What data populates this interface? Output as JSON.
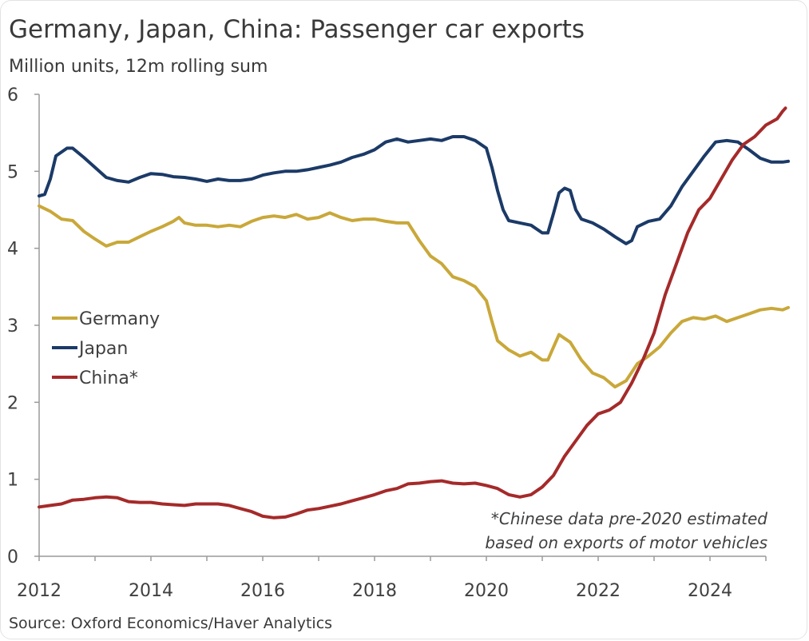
{
  "title": "Germany, Japan, China: Passenger car exports",
  "subtitle": "Million units, 12m rolling sum",
  "source": "Source: Oxford Economics/Haver Analytics",
  "chart_data": {
    "type": "line",
    "title": "Germany, Japan, China: Passenger car exports",
    "subtitle": "Million units, 12m rolling sum",
    "xlabel": "",
    "ylabel": "",
    "xlim": [
      2012,
      2025.6
    ],
    "ylim": [
      0,
      6
    ],
    "x_ticks": [
      "2012",
      "2014",
      "2016",
      "2018",
      "2020",
      "2022",
      "2024"
    ],
    "y_ticks": [
      "0",
      "1",
      "2",
      "3",
      "4",
      "5",
      "6"
    ],
    "grid": false,
    "legend_position": "left-middle",
    "annotations": [
      "*Chinese data pre-2020 estimated",
      "based on exports of motor vehicles"
    ],
    "series": [
      {
        "name": "Germany",
        "color": "#c9a83a",
        "points": [
          [
            2012.0,
            4.55
          ],
          [
            2012.2,
            4.48
          ],
          [
            2012.4,
            4.38
          ],
          [
            2012.6,
            4.36
          ],
          [
            2012.8,
            4.22
          ],
          [
            2013.0,
            4.12
          ],
          [
            2013.2,
            4.03
          ],
          [
            2013.4,
            4.08
          ],
          [
            2013.6,
            4.08
          ],
          [
            2013.8,
            4.15
          ],
          [
            2014.0,
            4.22
          ],
          [
            2014.2,
            4.28
          ],
          [
            2014.4,
            4.35
          ],
          [
            2014.5,
            4.4
          ],
          [
            2014.6,
            4.33
          ],
          [
            2014.8,
            4.3
          ],
          [
            2015.0,
            4.3
          ],
          [
            2015.2,
            4.28
          ],
          [
            2015.4,
            4.3
          ],
          [
            2015.6,
            4.28
          ],
          [
            2015.8,
            4.35
          ],
          [
            2016.0,
            4.4
          ],
          [
            2016.2,
            4.42
          ],
          [
            2016.4,
            4.4
          ],
          [
            2016.6,
            4.44
          ],
          [
            2016.8,
            4.38
          ],
          [
            2017.0,
            4.4
          ],
          [
            2017.2,
            4.46
          ],
          [
            2017.4,
            4.4
          ],
          [
            2017.6,
            4.36
          ],
          [
            2017.8,
            4.38
          ],
          [
            2018.0,
            4.38
          ],
          [
            2018.2,
            4.35
          ],
          [
            2018.4,
            4.33
          ],
          [
            2018.6,
            4.33
          ],
          [
            2018.8,
            4.1
          ],
          [
            2019.0,
            3.9
          ],
          [
            2019.2,
            3.8
          ],
          [
            2019.4,
            3.63
          ],
          [
            2019.6,
            3.58
          ],
          [
            2019.8,
            3.5
          ],
          [
            2020.0,
            3.32
          ],
          [
            2020.1,
            3.05
          ],
          [
            2020.2,
            2.8
          ],
          [
            2020.4,
            2.68
          ],
          [
            2020.6,
            2.6
          ],
          [
            2020.8,
            2.65
          ],
          [
            2021.0,
            2.55
          ],
          [
            2021.1,
            2.55
          ],
          [
            2021.3,
            2.88
          ],
          [
            2021.5,
            2.78
          ],
          [
            2021.7,
            2.55
          ],
          [
            2021.9,
            2.38
          ],
          [
            2022.1,
            2.32
          ],
          [
            2022.3,
            2.2
          ],
          [
            2022.5,
            2.28
          ],
          [
            2022.7,
            2.5
          ],
          [
            2022.9,
            2.6
          ],
          [
            2023.1,
            2.72
          ],
          [
            2023.3,
            2.9
          ],
          [
            2023.5,
            3.05
          ],
          [
            2023.7,
            3.1
          ],
          [
            2023.9,
            3.08
          ],
          [
            2024.1,
            3.12
          ],
          [
            2024.3,
            3.05
          ],
          [
            2024.5,
            3.1
          ],
          [
            2024.7,
            3.15
          ],
          [
            2024.9,
            3.2
          ],
          [
            2025.1,
            3.22
          ],
          [
            2025.3,
            3.2
          ],
          [
            2025.4,
            3.23
          ]
        ]
      },
      {
        "name": "Japan",
        "color": "#1b3a67",
        "points": [
          [
            2012.0,
            4.68
          ],
          [
            2012.1,
            4.7
          ],
          [
            2012.2,
            4.9
          ],
          [
            2012.3,
            5.2
          ],
          [
            2012.5,
            5.3
          ],
          [
            2012.6,
            5.3
          ],
          [
            2012.8,
            5.18
          ],
          [
            2013.0,
            5.05
          ],
          [
            2013.2,
            4.92
          ],
          [
            2013.4,
            4.88
          ],
          [
            2013.6,
            4.86
          ],
          [
            2013.8,
            4.92
          ],
          [
            2014.0,
            4.97
          ],
          [
            2014.2,
            4.96
          ],
          [
            2014.4,
            4.93
          ],
          [
            2014.6,
            4.92
          ],
          [
            2014.8,
            4.9
          ],
          [
            2015.0,
            4.87
          ],
          [
            2015.2,
            4.9
          ],
          [
            2015.4,
            4.88
          ],
          [
            2015.6,
            4.88
          ],
          [
            2015.8,
            4.9
          ],
          [
            2016.0,
            4.95
          ],
          [
            2016.2,
            4.98
          ],
          [
            2016.4,
            5.0
          ],
          [
            2016.6,
            5.0
          ],
          [
            2016.8,
            5.02
          ],
          [
            2017.0,
            5.05
          ],
          [
            2017.2,
            5.08
          ],
          [
            2017.4,
            5.12
          ],
          [
            2017.6,
            5.18
          ],
          [
            2017.8,
            5.22
          ],
          [
            2018.0,
            5.28
          ],
          [
            2018.2,
            5.38
          ],
          [
            2018.4,
            5.42
          ],
          [
            2018.6,
            5.38
          ],
          [
            2018.8,
            5.4
          ],
          [
            2019.0,
            5.42
          ],
          [
            2019.2,
            5.4
          ],
          [
            2019.4,
            5.45
          ],
          [
            2019.6,
            5.45
          ],
          [
            2019.8,
            5.4
          ],
          [
            2020.0,
            5.3
          ],
          [
            2020.1,
            5.05
          ],
          [
            2020.2,
            4.75
          ],
          [
            2020.3,
            4.5
          ],
          [
            2020.4,
            4.36
          ],
          [
            2020.6,
            4.33
          ],
          [
            2020.8,
            4.3
          ],
          [
            2021.0,
            4.2
          ],
          [
            2021.1,
            4.2
          ],
          [
            2021.2,
            4.45
          ],
          [
            2021.3,
            4.72
          ],
          [
            2021.4,
            4.78
          ],
          [
            2021.5,
            4.75
          ],
          [
            2021.6,
            4.5
          ],
          [
            2021.7,
            4.38
          ],
          [
            2021.9,
            4.33
          ],
          [
            2022.1,
            4.25
          ],
          [
            2022.3,
            4.15
          ],
          [
            2022.5,
            4.06
          ],
          [
            2022.6,
            4.1
          ],
          [
            2022.7,
            4.28
          ],
          [
            2022.9,
            4.35
          ],
          [
            2023.1,
            4.38
          ],
          [
            2023.3,
            4.55
          ],
          [
            2023.5,
            4.8
          ],
          [
            2023.7,
            5.0
          ],
          [
            2023.9,
            5.2
          ],
          [
            2024.1,
            5.38
          ],
          [
            2024.3,
            5.4
          ],
          [
            2024.5,
            5.38
          ],
          [
            2024.7,
            5.28
          ],
          [
            2024.9,
            5.17
          ],
          [
            2025.1,
            5.12
          ],
          [
            2025.3,
            5.12
          ],
          [
            2025.4,
            5.13
          ]
        ]
      },
      {
        "name": "China*",
        "color": "#a52a2a",
        "points": [
          [
            2012.0,
            0.64
          ],
          [
            2012.2,
            0.66
          ],
          [
            2012.4,
            0.68
          ],
          [
            2012.6,
            0.73
          ],
          [
            2012.8,
            0.74
          ],
          [
            2013.0,
            0.76
          ],
          [
            2013.2,
            0.77
          ],
          [
            2013.4,
            0.76
          ],
          [
            2013.6,
            0.71
          ],
          [
            2013.8,
            0.7
          ],
          [
            2014.0,
            0.7
          ],
          [
            2014.2,
            0.68
          ],
          [
            2014.4,
            0.67
          ],
          [
            2014.6,
            0.66
          ],
          [
            2014.8,
            0.68
          ],
          [
            2015.0,
            0.68
          ],
          [
            2015.2,
            0.68
          ],
          [
            2015.4,
            0.66
          ],
          [
            2015.6,
            0.62
          ],
          [
            2015.8,
            0.58
          ],
          [
            2016.0,
            0.52
          ],
          [
            2016.2,
            0.5
          ],
          [
            2016.4,
            0.51
          ],
          [
            2016.6,
            0.55
          ],
          [
            2016.8,
            0.6
          ],
          [
            2017.0,
            0.62
          ],
          [
            2017.2,
            0.65
          ],
          [
            2017.4,
            0.68
          ],
          [
            2017.6,
            0.72
          ],
          [
            2017.8,
            0.76
          ],
          [
            2018.0,
            0.8
          ],
          [
            2018.2,
            0.85
          ],
          [
            2018.4,
            0.88
          ],
          [
            2018.6,
            0.94
          ],
          [
            2018.8,
            0.95
          ],
          [
            2019.0,
            0.97
          ],
          [
            2019.2,
            0.98
          ],
          [
            2019.4,
            0.95
          ],
          [
            2019.6,
            0.94
          ],
          [
            2019.8,
            0.95
          ],
          [
            2020.0,
            0.92
          ],
          [
            2020.2,
            0.88
          ],
          [
            2020.4,
            0.8
          ],
          [
            2020.6,
            0.77
          ],
          [
            2020.8,
            0.8
          ],
          [
            2021.0,
            0.9
          ],
          [
            2021.2,
            1.05
          ],
          [
            2021.4,
            1.3
          ],
          [
            2021.6,
            1.5
          ],
          [
            2021.8,
            1.7
          ],
          [
            2022.0,
            1.85
          ],
          [
            2022.2,
            1.9
          ],
          [
            2022.4,
            2.0
          ],
          [
            2022.6,
            2.25
          ],
          [
            2022.8,
            2.55
          ],
          [
            2023.0,
            2.9
          ],
          [
            2023.2,
            3.4
          ],
          [
            2023.4,
            3.8
          ],
          [
            2023.6,
            4.2
          ],
          [
            2023.8,
            4.5
          ],
          [
            2024.0,
            4.65
          ],
          [
            2024.2,
            4.9
          ],
          [
            2024.4,
            5.15
          ],
          [
            2024.6,
            5.35
          ],
          [
            2024.8,
            5.45
          ],
          [
            2025.0,
            5.6
          ],
          [
            2025.2,
            5.68
          ],
          [
            2025.3,
            5.78
          ],
          [
            2025.35,
            5.82
          ]
        ]
      }
    ]
  },
  "legend": {
    "items": [
      {
        "label": "Germany",
        "color": "#c9a83a"
      },
      {
        "label": "Japan",
        "color": "#1b3a67"
      },
      {
        "label": "China*",
        "color": "#a52a2a"
      }
    ]
  },
  "note": {
    "line1": "*Chinese data pre-2020 estimated",
    "line2": "based on exports of motor vehicles"
  }
}
